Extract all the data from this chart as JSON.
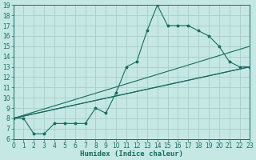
{
  "bg_color": "#c5e8e5",
  "grid_color": "#a8ceca",
  "line_color": "#1a6b60",
  "xlabel": "Humidex (Indice chaleur)",
  "xlim": [
    0,
    23
  ],
  "ylim": [
    6,
    19
  ],
  "xticks": [
    0,
    1,
    2,
    3,
    4,
    5,
    6,
    7,
    8,
    9,
    10,
    11,
    12,
    13,
    14,
    15,
    16,
    17,
    18,
    19,
    20,
    21,
    22,
    23
  ],
  "yticks": [
    6,
    7,
    8,
    9,
    10,
    11,
    12,
    13,
    14,
    15,
    16,
    17,
    18,
    19
  ],
  "curve_x": [
    0,
    1,
    2,
    3,
    4,
    5,
    6,
    7,
    8,
    9,
    10,
    11,
    12,
    13,
    14,
    15,
    16,
    17,
    18,
    19,
    20,
    21,
    22,
    23
  ],
  "curve_y": [
    8,
    8,
    6.5,
    6.5,
    7.5,
    7.5,
    7.5,
    7.5,
    9.0,
    8.5,
    10.5,
    13.0,
    13.5,
    16.5,
    19.0,
    17.0,
    17.0,
    17.0,
    16.5,
    16.0,
    15.0,
    13.5,
    13.0,
    13.0
  ],
  "straight_lines": [
    {
      "x": [
        0,
        23
      ],
      "y": [
        8,
        15
      ]
    },
    {
      "x": [
        0,
        23
      ],
      "y": [
        8,
        13
      ]
    },
    {
      "x": [
        0,
        23
      ],
      "y": [
        8,
        13
      ]
    }
  ],
  "tick_fontsize": 5.5,
  "xlabel_fontsize": 6.5,
  "lw": 0.8,
  "marker_size": 2.5
}
